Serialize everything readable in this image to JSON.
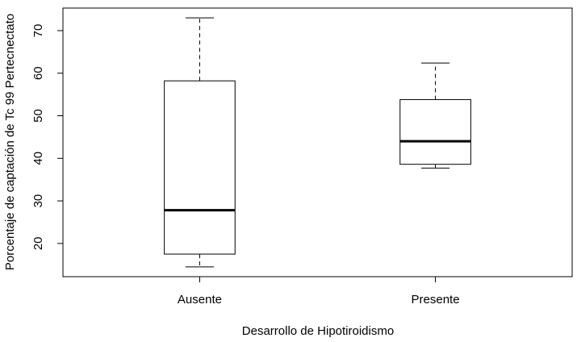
{
  "chart_data": {
    "type": "box",
    "x_label": "Desarrollo de Hipotiroidismo",
    "y_label": "Porcentaje de captación de Tc 99 Pertecnectato",
    "categories": [
      "Ausente",
      "Presente"
    ],
    "low": [
      14.5,
      37.7
    ],
    "q1": [
      17.5,
      38.6
    ],
    "median": [
      27.8,
      44.0
    ],
    "q3": [
      58.2,
      53.8
    ],
    "high": [
      73.0,
      62.4
    ],
    "color": "#000000",
    "ylim": [
      12.2,
      75.3
    ],
    "yticks": [
      20,
      30,
      40,
      50,
      60,
      70
    ]
  }
}
